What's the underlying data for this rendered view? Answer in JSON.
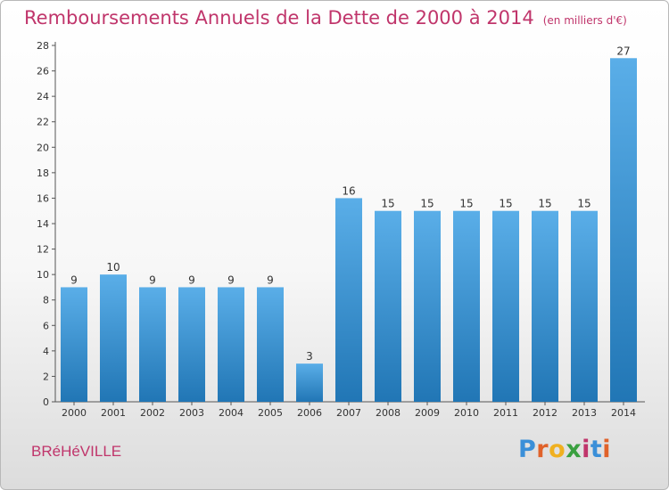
{
  "header": {
    "title": "Remboursements Annuels de la Dette de 2000 à 2014",
    "unit": "(en milliers d'€)"
  },
  "footer": {
    "commune": "BRéHéVILLE",
    "brand_letters": [
      "P",
      "r",
      "o",
      "x",
      "i",
      "t",
      "i"
    ],
    "brand_colors": [
      "#3a8fd8",
      "#e0622a",
      "#f0b020",
      "#3aa040",
      "#c0356b",
      "#3a8fd8",
      "#e0622a"
    ]
  },
  "colors": {
    "title": "#c0356b",
    "bar_top": "#5aaee8",
    "bar_bottom": "#2176b5",
    "axis": "#555555",
    "text": "#333333"
  },
  "chart_data": {
    "type": "bar",
    "title": "Remboursements Annuels de la Dette de 2000 à 2014",
    "unit": "(en milliers d'€)",
    "categories": [
      "2000",
      "2001",
      "2002",
      "2003",
      "2004",
      "2005",
      "2006",
      "2007",
      "2008",
      "2009",
      "2010",
      "2011",
      "2012",
      "2013",
      "2014"
    ],
    "values": [
      9,
      10,
      9,
      9,
      9,
      9,
      3,
      16,
      15,
      15,
      15,
      15,
      15,
      15,
      27
    ],
    "ylim": [
      0,
      28
    ],
    "yticks": [
      0,
      2,
      4,
      6,
      8,
      10,
      12,
      14,
      16,
      18,
      20,
      22,
      24,
      26,
      28
    ],
    "grid": false,
    "data_labels": true
  }
}
